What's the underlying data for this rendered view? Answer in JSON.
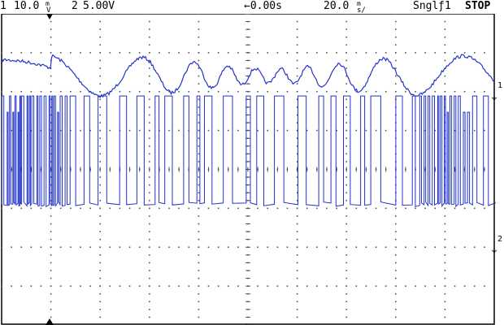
{
  "status_bar": {
    "ch1_label": "1",
    "ch1_scale": "10.0",
    "ch1_units": "V",
    "ch1_units_super": "m",
    "ch2_label": "2",
    "ch2_scale": "5.00V",
    "trigger_delay": "←0.00s",
    "timebase": "20.0",
    "timebase_units": "s/",
    "timebase_units_super": "m",
    "acq_mode": "Sngl",
    "trigger_source": "1",
    "run_state": "STOP"
  },
  "markers": {
    "ch1_ref": "1",
    "ch2_ref": "2"
  },
  "colors": {
    "trace": "#2233cc",
    "grid": "#555555",
    "background": "#ffffff",
    "text": "#000000"
  },
  "display": {
    "h_divisions": 10,
    "v_divisions": 8,
    "ch1_trace": {
      "type": "chirp-like analog waveform",
      "level_divs_from_top": 1.6,
      "amplitude_divs": 1.0
    },
    "ch2_trace": {
      "type": "digital pulse train",
      "high_divs_from_top": 3.3,
      "low_divs_from_top": 5.9
    }
  }
}
